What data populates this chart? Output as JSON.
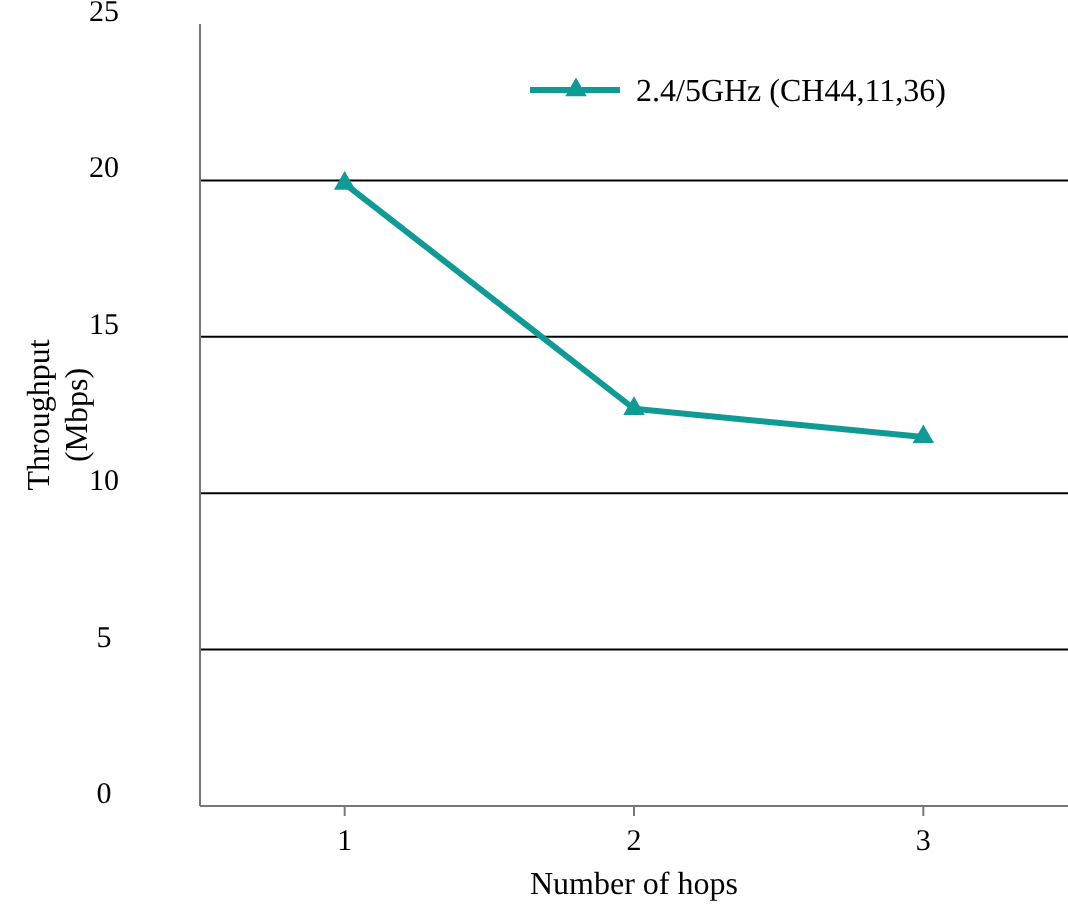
{
  "chart_data": {
    "type": "line",
    "xlabel": "Number of hops",
    "ylabel": "Throughput (Mbps)",
    "categories": [
      "1",
      "2",
      "3"
    ],
    "series": [
      {
        "name": "2.4/5GHz (CH44,11,36)",
        "color": "#0f9a96",
        "values": [
          19.9,
          12.7,
          11.8
        ]
      }
    ],
    "ylim": [
      0,
      25
    ],
    "yticks": [
      0,
      5,
      10,
      15,
      20,
      25
    ],
    "grid": "y",
    "legend": "top right",
    "marker": "triangle",
    "line_style": "solid"
  }
}
